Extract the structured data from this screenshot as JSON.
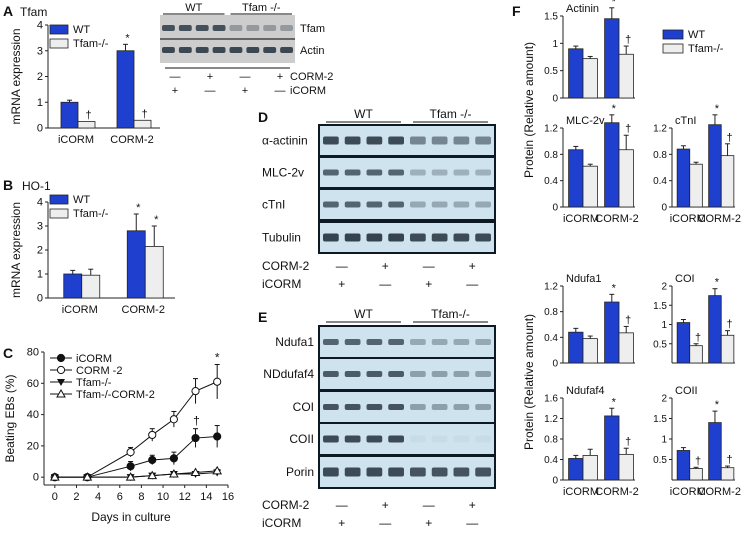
{
  "colors": {
    "wt": "#1f3fcf",
    "ko": "#eeeeee",
    "axis": "#222222",
    "blot_light": "#cfe3ef",
    "blot_gray": "#cdcdcd",
    "band": "#2b3a45"
  },
  "panel_letters": {
    "a": "A",
    "b": "B",
    "c": "C",
    "d": "D",
    "e": "E",
    "f": "F"
  },
  "chart_data": [
    {
      "id": "A",
      "type": "bar",
      "title": "Tfam",
      "ylabel": "mRNA expression",
      "ylim": [
        0,
        4
      ],
      "yticks": [
        0,
        1,
        2,
        3,
        4
      ],
      "categories": [
        "iCORM",
        "CORM-2"
      ],
      "legend": [
        "WT",
        "Tfam-/-"
      ],
      "series": [
        {
          "name": "WT",
          "values": [
            1.0,
            3.0
          ],
          "errors": [
            0.08,
            0.25
          ]
        },
        {
          "name": "Tfam-/-",
          "values": [
            0.25,
            0.3
          ],
          "errors": [
            0.0,
            0.0
          ]
        }
      ],
      "annotations": [
        [
          "*",
          "",
          "†",
          "†"
        ]
      ]
    },
    {
      "id": "B",
      "type": "bar",
      "title": "HO-1",
      "ylabel": "mRNA expression",
      "ylim": [
        0,
        4
      ],
      "yticks": [
        0,
        1,
        2,
        3,
        4
      ],
      "categories": [
        "iCORM",
        "CORM-2"
      ],
      "legend": [
        "WT",
        "Tfam-/-"
      ],
      "series": [
        {
          "name": "WT",
          "values": [
            1.0,
            2.8
          ],
          "errors": [
            0.15,
            0.7
          ]
        },
        {
          "name": "Tfam-/-",
          "values": [
            0.95,
            2.15
          ],
          "errors": [
            0.25,
            0.85
          ]
        }
      ],
      "annotations": [
        [
          "*",
          "*"
        ]
      ]
    },
    {
      "id": "C",
      "type": "line",
      "ylabel": "Beating EBs (%)",
      "xlabel": "Days in culture",
      "xlim": [
        -1,
        16
      ],
      "ylim": [
        -5,
        80
      ],
      "xticks": [
        0,
        2,
        4,
        6,
        8,
        10,
        12,
        14,
        16
      ],
      "yticks": [
        0,
        20,
        40,
        60,
        80
      ],
      "x": [
        0,
        3,
        7,
        9,
        11,
        13,
        15
      ],
      "series": [
        {
          "name": "iCORM",
          "marker": "filled-circle",
          "values": [
            0,
            0,
            7,
            11,
            12,
            25,
            26
          ],
          "errors": [
            0,
            0,
            3,
            3,
            4,
            6,
            7
          ]
        },
        {
          "name": "CORM -2",
          "marker": "open-circle",
          "values": [
            0,
            0,
            16,
            27,
            37,
            55,
            61
          ],
          "errors": [
            0,
            0,
            3,
            4,
            5,
            8,
            11
          ]
        },
        {
          "name": "Tfam-/-",
          "marker": "filled-triangle",
          "values": [
            0,
            0,
            0,
            1,
            2,
            2,
            3
          ],
          "errors": [
            0,
            0,
            0,
            0,
            0,
            0,
            1
          ]
        },
        {
          "name": "Tfam-/-CORM-2",
          "marker": "open-triangle",
          "values": [
            0,
            0,
            0,
            1,
            2,
            3,
            4
          ],
          "errors": [
            0,
            0,
            0,
            0,
            0,
            0,
            1
          ]
        }
      ],
      "annotations": [
        "†",
        "*"
      ]
    },
    {
      "id": "F",
      "type": "bar",
      "ylabel": "Protein (Relative amount)",
      "legend": [
        "WT",
        "Tfam-/-"
      ],
      "subplots": [
        {
          "title": "Actinin",
          "ylim": [
            0,
            1.5
          ],
          "yticks": [
            0,
            0.5,
            1.0,
            1.5
          ],
          "categories": [
            "",
            ""
          ],
          "wt": [
            0.9,
            1.45
          ],
          "wt_err": [
            0.05,
            0.2
          ],
          "ko": [
            0.72,
            0.8
          ],
          "ko_err": [
            0.04,
            0.15
          ],
          "marks": [
            "",
            "*",
            "",
            "†"
          ]
        },
        {
          "title": "MLC-2v",
          "ylim": [
            0,
            1.2
          ],
          "yticks": [
            0,
            0.4,
            0.8,
            1.2
          ],
          "categories": [
            "iCORM",
            "CORM-2"
          ],
          "wt": [
            0.87,
            1.28
          ],
          "wt_err": [
            0.05,
            0.12
          ],
          "ko": [
            0.62,
            0.87
          ],
          "ko_err": [
            0.03,
            0.22
          ],
          "marks": [
            "",
            "*",
            "",
            "†"
          ]
        },
        {
          "title": "cTnI",
          "ylim": [
            0,
            1.2
          ],
          "yticks": [
            0,
            0.4,
            0.8,
            1.2
          ],
          "categories": [
            "iCORM",
            "CORM-2"
          ],
          "wt": [
            0.88,
            1.25
          ],
          "wt_err": [
            0.05,
            0.15
          ],
          "ko": [
            0.65,
            0.78
          ],
          "ko_err": [
            0.03,
            0.18
          ],
          "marks": [
            "",
            "*",
            "",
            "†"
          ]
        },
        {
          "title": "Ndufa1",
          "ylim": [
            0,
            1.2
          ],
          "yticks": [
            0,
            0.4,
            0.8,
            1.2
          ],
          "categories": [
            "",
            ""
          ],
          "wt": [
            0.48,
            0.95
          ],
          "wt_err": [
            0.06,
            0.12
          ],
          "ko": [
            0.38,
            0.47
          ],
          "ko_err": [
            0.04,
            0.1
          ],
          "marks": [
            "",
            "*",
            "",
            "†"
          ]
        },
        {
          "title": "COI",
          "ylim": [
            0,
            2.0
          ],
          "yticks": [
            0.5,
            1.0,
            1.5,
            2.0
          ],
          "categories": [
            "",
            ""
          ],
          "wt": [
            1.05,
            1.75
          ],
          "wt_err": [
            0.08,
            0.18
          ],
          "ko": [
            0.45,
            0.72
          ],
          "ko_err": [
            0.05,
            0.12
          ],
          "marks": [
            "",
            "*",
            "†",
            "†"
          ]
        },
        {
          "title": "Ndufaf4",
          "ylim": [
            0,
            1.6
          ],
          "yticks": [
            0,
            0.4,
            0.8,
            1.2,
            1.6
          ],
          "categories": [
            "iCORM",
            "CORM-2"
          ],
          "wt": [
            0.42,
            1.25
          ],
          "wt_err": [
            0.06,
            0.15
          ],
          "ko": [
            0.48,
            0.5
          ],
          "ko_err": [
            0.12,
            0.12
          ],
          "marks": [
            "",
            "*",
            "",
            "†"
          ]
        },
        {
          "title": "COII",
          "ylim": [
            0,
            2.0
          ],
          "yticks": [
            0.5,
            1.0,
            1.5,
            2.0
          ],
          "categories": [
            "iCORM",
            "CORM-2"
          ],
          "wt": [
            0.72,
            1.4
          ],
          "wt_err": [
            0.07,
            0.28
          ],
          "ko": [
            0.28,
            0.3
          ],
          "ko_err": [
            0.03,
            0.04
          ],
          "marks": [
            "",
            "*",
            "†",
            "†"
          ]
        }
      ]
    }
  ],
  "blot_a": {
    "groups": [
      "WT",
      "Tfam -/-"
    ],
    "bands": [
      "Tfam",
      "Actin"
    ],
    "row_labels": [
      "CORM-2",
      "iCORM"
    ],
    "corm2": [
      "—",
      "+",
      "—",
      "+"
    ],
    "icorm": [
      "+",
      "—",
      "+",
      "—"
    ]
  },
  "blot_d": {
    "groups": [
      "WT",
      "Tfam -/-"
    ],
    "bands": [
      "α-actinin",
      "MLC-2v",
      "cTnI",
      "Tubulin"
    ],
    "row_labels": [
      "CORM-2",
      "iCORM"
    ],
    "corm2": [
      "—",
      "+",
      "—",
      "+"
    ],
    "icorm": [
      "+",
      "—",
      "+",
      "—"
    ]
  },
  "blot_e": {
    "groups": [
      "WT",
      "Tfam-/-"
    ],
    "bands": [
      "Ndufa1",
      "NDdufaf4",
      "COI",
      "COII",
      "Porin"
    ],
    "row_labels": [
      "CORM-2",
      "iCORM"
    ],
    "corm2": [
      "—",
      "+",
      "—",
      "+"
    ],
    "icorm": [
      "+",
      "—",
      "+",
      "—"
    ]
  }
}
